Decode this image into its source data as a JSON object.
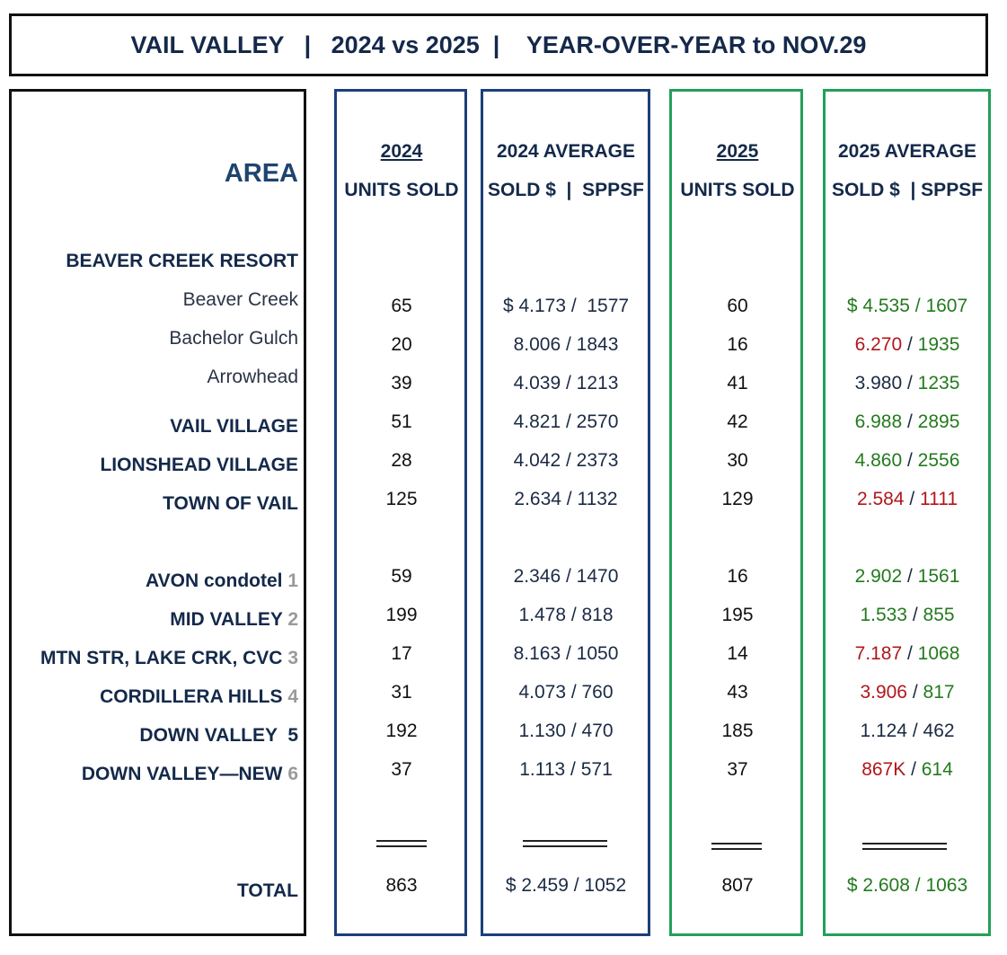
{
  "title": "VAIL VALLEY   |   2024 vs 2025  |    YEAR-OVER-YEAR to NOV.29",
  "headers": {
    "area": "AREA",
    "y2024": "2024",
    "units_sold": "UNITS SOLD",
    "avg2024": "2024 AVERAGE",
    "sold_sppsf": "SOLD $  |  SPPSF",
    "y2025": "2025",
    "avg2025": "2025 AVERAGE",
    "sold_sppsf_2025": "SOLD $  | SPPSF"
  },
  "rows": [
    {
      "area": "BEAVER CREEK RESORT",
      "type": "region"
    },
    {
      "area": "Beaver Creek",
      "type": "sub",
      "u2024": "65",
      "a2024": "$ 4.173 /  1577",
      "u2025": "60",
      "a2025": [
        {
          "t": "$ 4.535",
          "c": "green"
        },
        {
          "t": " / ",
          "c": "green"
        },
        {
          "t": "1607",
          "c": "green"
        }
      ]
    },
    {
      "area": "Bachelor Gulch",
      "type": "sub",
      "u2024": "20",
      "a2024": "8.006 / 1843",
      "u2025": "16",
      "a2025": [
        {
          "t": "6.270",
          "c": "red"
        },
        {
          "t": " / ",
          "c": "dark"
        },
        {
          "t": "1935",
          "c": "green"
        }
      ]
    },
    {
      "area": "Arrowhead",
      "type": "sub",
      "u2024": "39",
      "a2024": "4.039 / 1213",
      "u2025": "41",
      "a2025": [
        {
          "t": "3.980",
          "c": "dark"
        },
        {
          "t": " / ",
          "c": "dark"
        },
        {
          "t": "1235",
          "c": "green"
        }
      ]
    },
    {
      "area": "VAIL VILLAGE",
      "type": "region",
      "u2024": "51",
      "a2024": "4.821 / 2570",
      "u2025": "42",
      "a2025": [
        {
          "t": "6.988",
          "c": "green"
        },
        {
          "t": " / ",
          "c": "dark"
        },
        {
          "t": "2895",
          "c": "green"
        }
      ]
    },
    {
      "area": "LIONSHEAD VILLAGE",
      "type": "region",
      "u2024": "28",
      "a2024": "4.042 / 2373",
      "u2025": "30",
      "a2025": [
        {
          "t": "4.860",
          "c": "green"
        },
        {
          "t": " / ",
          "c": "dark"
        },
        {
          "t": "2556",
          "c": "green"
        }
      ]
    },
    {
      "area": "TOWN OF VAIL",
      "type": "region",
      "u2024": "125",
      "a2024": "2.634 / 1132",
      "u2025": "129",
      "a2025": [
        {
          "t": "2.584",
          "c": "red"
        },
        {
          "t": " / ",
          "c": "dark"
        },
        {
          "t": "1111",
          "c": "red"
        }
      ]
    },
    {
      "area": "AVON condotel ",
      "num": "1",
      "type": "region",
      "u2024": "59",
      "a2024": "2.346 / 1470",
      "u2025": "16",
      "a2025": [
        {
          "t": "2.902",
          "c": "green"
        },
        {
          "t": " / ",
          "c": "dark"
        },
        {
          "t": "1561",
          "c": "green"
        }
      ]
    },
    {
      "area": "MID VALLEY ",
      "num": "2",
      "type": "region",
      "u2024": "199",
      "a2024": "1.478 / 818",
      "u2025": "195",
      "a2025": [
        {
          "t": "1.533",
          "c": "green"
        },
        {
          "t": " / ",
          "c": "dark"
        },
        {
          "t": "855",
          "c": "green"
        }
      ]
    },
    {
      "area": "MTN STR, LAKE CRK, CVC ",
      "num": "3",
      "type": "region",
      "u2024": "17",
      "a2024": "8.163 / 1050",
      "u2025": "14",
      "a2025": [
        {
          "t": "7.187",
          "c": "red"
        },
        {
          "t": " / ",
          "c": "dark"
        },
        {
          "t": "1068",
          "c": "green"
        }
      ]
    },
    {
      "area": "CORDILLERA HILLS ",
      "num": "4",
      "type": "region",
      "u2024": "31",
      "a2024": "4.073 / 760",
      "u2025": "43",
      "a2025": [
        {
          "t": "3.906",
          "c": "red"
        },
        {
          "t": " / ",
          "c": "dark"
        },
        {
          "t": "817",
          "c": "green"
        }
      ]
    },
    {
      "area": "DOWN VALLEY  5",
      "type": "region",
      "u2024": "192",
      "a2024": "1.130 / 470",
      "u2025": "185",
      "a2025": [
        {
          "t": "1.124",
          "c": "dark"
        },
        {
          "t": " / ",
          "c": "dark"
        },
        {
          "t": "462",
          "c": "dark"
        }
      ]
    },
    {
      "area": "DOWN VALLEY—NEW ",
      "num": "6",
      "type": "region",
      "u2024": "37",
      "a2024": "1.113 / 571",
      "u2025": "37",
      "a2025": [
        {
          "t": "867K",
          "c": "red"
        },
        {
          "t": " / ",
          "c": "dark"
        },
        {
          "t": "614",
          "c": "green"
        }
      ]
    }
  ],
  "total": {
    "label": "TOTAL",
    "u2024": "863",
    "a2024": "$ 2.459 / 1052",
    "u2025": "807",
    "a2025": [
      {
        "t": "$ 2.608",
        "c": "green"
      },
      {
        "t": " / ",
        "c": "green"
      },
      {
        "t": "1063",
        "c": "green"
      }
    ]
  }
}
